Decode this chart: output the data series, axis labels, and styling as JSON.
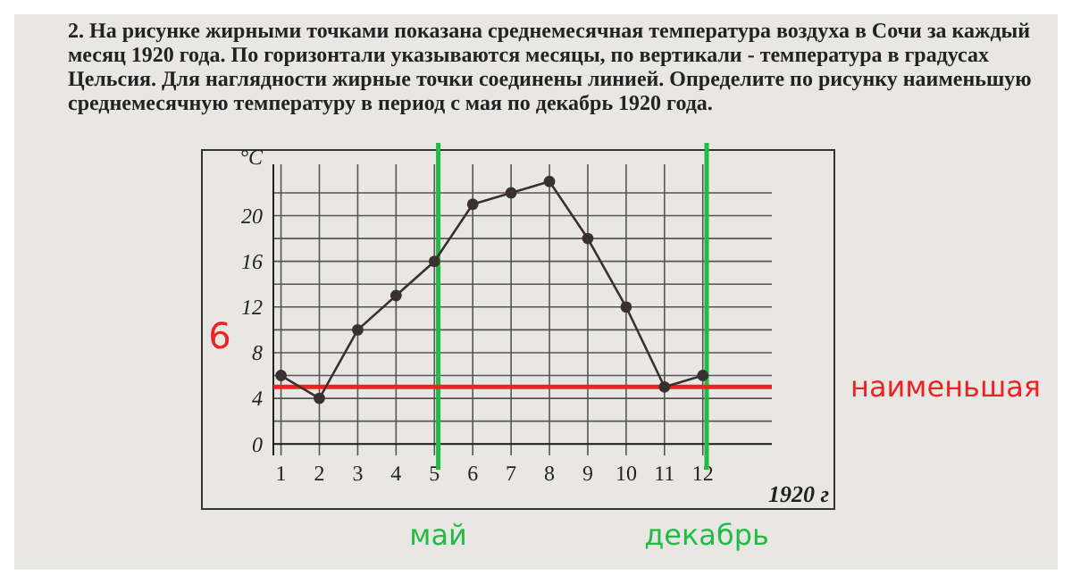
{
  "chart_data": {
    "type": "line",
    "title": "2.   На рисунке жирными точками показана среднемесячная температура воздуха в Сочи за каждый месяц 1920 года. По горизонтали указываются месяцы, по вертикали - температура в градусах Цельсия. Для наглядности жирные точки соединены линией. Определите по рисунку наименьшую среднемесячную температуру в период с мая по декабрь 1920 года.",
    "xlabel": "1920 г",
    "ylabel": "°C",
    "x": [
      1,
      2,
      3,
      4,
      5,
      6,
      7,
      8,
      9,
      10,
      11,
      12
    ],
    "series": [
      {
        "color": "#3a3030",
        "values": [
          6,
          4,
          10,
          13,
          16,
          21,
          22,
          23,
          18,
          12,
          5,
          6
        ]
      }
    ],
    "xlim": [
      0.8,
      13.8
    ],
    "xticks": [
      1,
      2,
      3,
      4,
      5,
      6,
      7,
      8,
      9,
      10,
      11,
      12
    ],
    "ylim": [
      -1,
      24.5
    ],
    "yticks": [
      0,
      {
        "value": 2,
        "label": null
      },
      4,
      {
        "value": 6,
        "label": null
      },
      8,
      {
        "value": 10,
        "label": null
      },
      12,
      {
        "value": 14,
        "label": null
      },
      16,
      {
        "value": 18,
        "label": null
      },
      20,
      {
        "value": 22,
        "label": null
      }
    ],
    "grid": true,
    "marker": "circle",
    "line_style": "solid",
    "ref_lines": [
      {
        "axis": "x",
        "value": 5.1,
        "label": "май",
        "color": "#22bb44"
      },
      {
        "axis": "x",
        "value": 12.1,
        "label": "декабрь",
        "color": "#22bb44"
      },
      {
        "axis": "y",
        "value": 5,
        "label": "наименьшая",
        "color": "#ee2222"
      }
    ],
    "annotations": [
      "6"
    ]
  }
}
